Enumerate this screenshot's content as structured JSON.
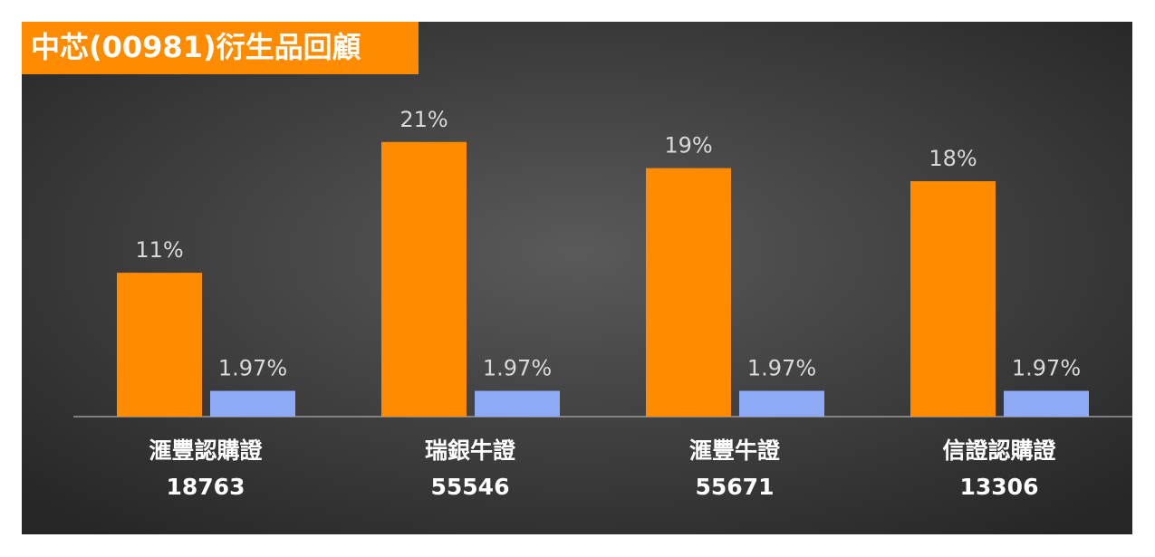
{
  "chart_data": {
    "type": "bar",
    "title": "中芯(00981)衍生品回顧",
    "categories": [
      "滙豐認購證\n18763",
      "瑞銀牛證\n55546",
      "滙豐牛證\n55671",
      "信證認購證\n13306"
    ],
    "series": [
      {
        "color": "#ff8c00",
        "values": [
          11,
          21,
          19,
          18
        ],
        "value_labels": [
          "11%",
          "21%",
          "19%",
          "18%"
        ]
      },
      {
        "color": "#8eaaf5",
        "values": [
          1.97,
          1.97,
          1.97,
          1.97
        ],
        "value_labels": [
          "1.97%",
          "1.97%",
          "1.97%",
          "1.97%"
        ]
      }
    ],
    "ylim": [
      0,
      25
    ]
  }
}
